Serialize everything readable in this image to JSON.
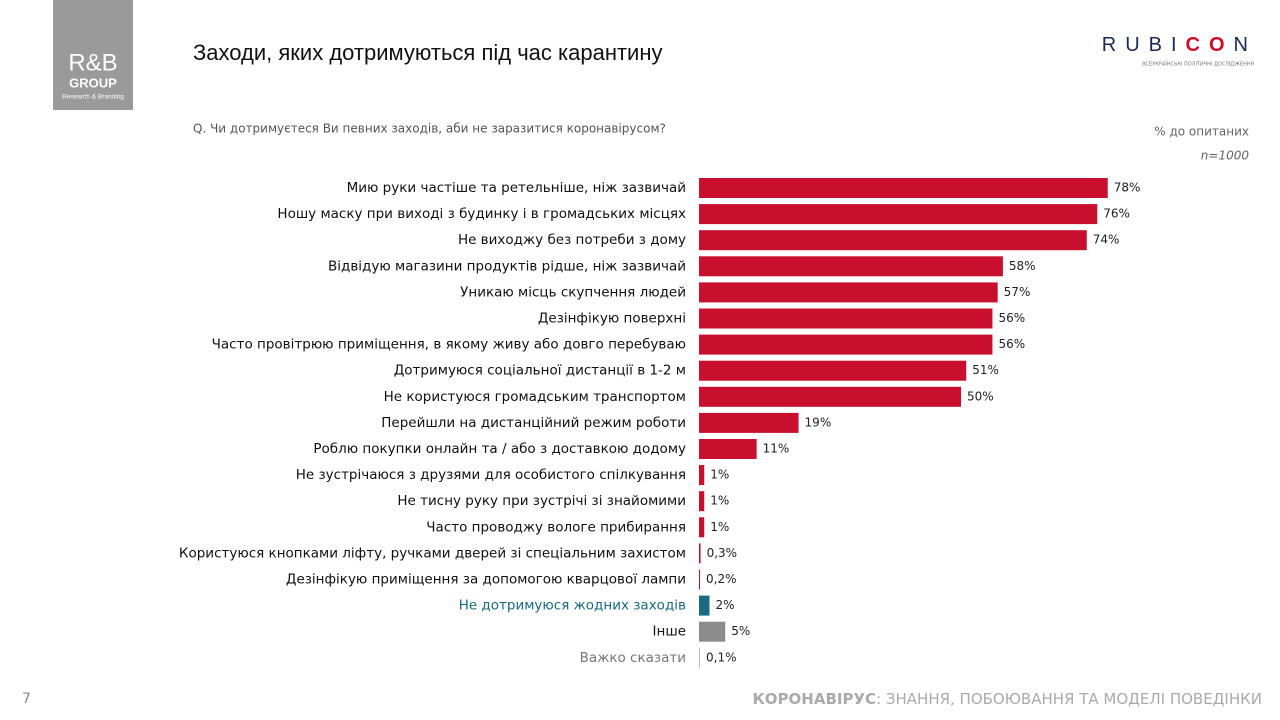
{
  "header": {
    "logo_main": "R&B",
    "logo_group": "GROUP",
    "logo_sub": "Research & Branding",
    "brand_a": "RUBI",
    "brand_b": "CO",
    "brand_c": "N",
    "brand_sub": "ВСЕУКРАЇНСЬКІ ПОЛІТИЧНІ ДОСЛІДЖЕННЯ"
  },
  "footer": {
    "page": "7",
    "topic_bold": "КОРОНАВІРУС",
    "topic_rest": ": ЗНАННЯ, ПОБОЮВАННЯ ТА МОДЕЛІ ПОВЕДІНКИ"
  },
  "chart_data": {
    "type": "bar",
    "orientation": "horizontal",
    "title": "Заходи, яких дотримуються під час карантину",
    "subtitle": "Q. Чи дотримуєтеся Ви певних заходів, аби не заразитися коронавірусом?",
    "note_units": "% до опитаних",
    "note_n": "n=1000",
    "categories": [
      "Мию руки частіше та ретельніше, ніж зазвичай",
      "Ношу маску при виході з будинку і в громадських місцях",
      "Не виходжу без потреби з дому",
      "Відвідую магазини продуктів рідше, ніж зазвичай",
      "Уникаю місць скупчення людей",
      "Дезінфікую поверхні",
      "Часто провітрюю приміщення, в якому живу або довго перебуваю",
      "Дотримуюся соціальної дистанції в 1-2 м",
      "Не користуюся громадським транспортом",
      "Перейшли на дистанційний режим роботи",
      "Роблю покупки онлайн та / або з доставкою додому",
      "Не зустрічаюся з друзями для особистого спілкування",
      "Не тисну руку при зустрічі зі знайомими",
      "Часто проводжу вологе прибирання",
      "Користуюся кнопками ліфту, ручками дверей зі спеціальним захистом",
      "Дезінфікую приміщення за допомогою кварцової лампи",
      "Не дотримуюся жодних заходів",
      "Інше",
      "Важко сказати"
    ],
    "values": [
      78,
      76,
      74,
      58,
      57,
      56,
      56,
      51,
      50,
      19,
      11,
      1,
      1,
      1,
      0.3,
      0.2,
      2,
      5,
      0.1
    ],
    "value_labels": [
      "78%",
      "76%",
      "74%",
      "58%",
      "57%",
      "56%",
      "56%",
      "51%",
      "50%",
      "19%",
      "11%",
      "1%",
      "1%",
      "1%",
      "0,3%",
      "0,2%",
      "2%",
      "5%",
      "0,1%"
    ],
    "colors": [
      "#c8102e",
      "#c8102e",
      "#c8102e",
      "#c8102e",
      "#c8102e",
      "#c8102e",
      "#c8102e",
      "#c8102e",
      "#c8102e",
      "#c8102e",
      "#c8102e",
      "#c8102e",
      "#c8102e",
      "#c8102e",
      "#c8102e",
      "#c8102e",
      "#1a6a80",
      "#8c8c8c",
      "#bdbdbd"
    ],
    "label_colors": [
      "#111",
      "#111",
      "#111",
      "#111",
      "#111",
      "#111",
      "#111",
      "#111",
      "#111",
      "#111",
      "#111",
      "#111",
      "#111",
      "#111",
      "#111",
      "#111",
      "#1a6a80",
      "#111",
      "#777"
    ]
  }
}
